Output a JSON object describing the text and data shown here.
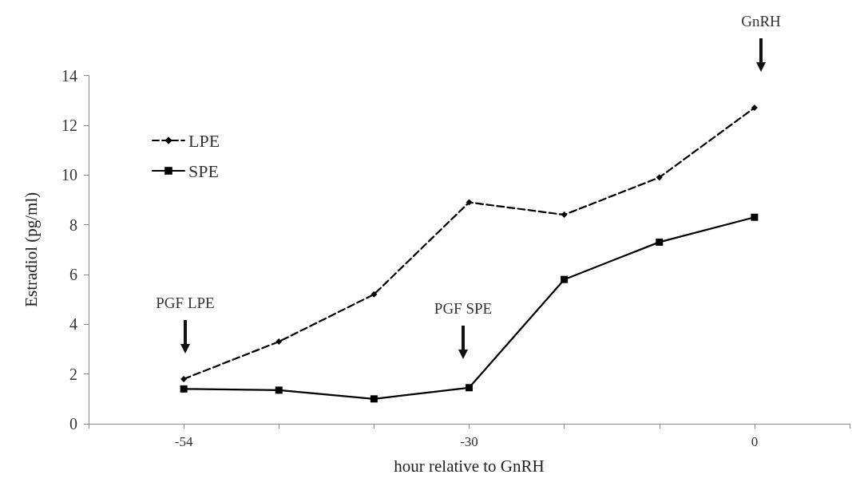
{
  "chart_data": {
    "type": "line",
    "xlabel": "hour relative to GnRH",
    "ylabel": "Estradiol (pg/ml)",
    "categories": [
      null,
      "-54",
      null,
      null,
      "-30",
      null,
      null,
      "0",
      null
    ],
    "series": [
      {
        "name": "LPE",
        "color": "#000000",
        "line_style": "dashed",
        "marker": "diamond",
        "values": [
          null,
          1.8,
          3.3,
          5.2,
          8.9,
          8.4,
          9.9,
          12.7,
          null
        ]
      },
      {
        "name": "SPE",
        "color": "#000000",
        "line_style": "solid",
        "marker": "square",
        "values": [
          null,
          1.4,
          1.35,
          1.0,
          1.45,
          5.8,
          7.3,
          8.3,
          null
        ]
      }
    ],
    "ylim": [
      0,
      14
    ],
    "yticks": [
      0,
      2,
      4,
      6,
      8,
      10,
      12,
      14
    ],
    "grid": false,
    "legend": "top left",
    "annotations": [
      "PGF LPE",
      "PGF SPE",
      "GnRH"
    ]
  }
}
